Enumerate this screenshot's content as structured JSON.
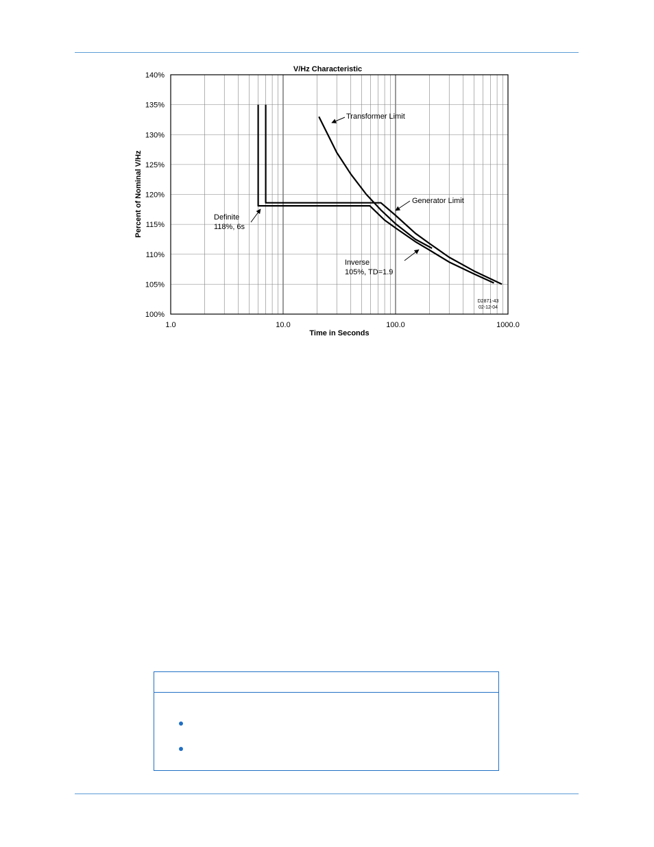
{
  "colors": {
    "rule": "#5b9bd5",
    "box_border": "#1f6fc4",
    "bullet": "#1f6fc4",
    "curve": "#000000",
    "grid": "#808080"
  },
  "chart_data": {
    "type": "line",
    "title": "V/Hz Characteristic",
    "xlabel": "Time in Seconds",
    "ylabel": "Percent of Nominal V/Hz",
    "x_scale": "log",
    "xlim": [
      1,
      1000
    ],
    "ylim": [
      100,
      140
    ],
    "x_ticks": [
      "1.0",
      "10.0",
      "100.0",
      "1000.0"
    ],
    "y_ticks": [
      "100%",
      "105%",
      "110%",
      "115%",
      "120%",
      "125%",
      "130%",
      "135%",
      "140%"
    ],
    "grid": true,
    "series": [
      {
        "curve": "transformer",
        "points": [
          [
            20.8,
            133
          ],
          [
            30,
            127
          ],
          [
            40,
            123.4
          ],
          [
            55,
            120
          ],
          [
            75,
            117.3
          ],
          [
            100,
            115.1
          ],
          [
            150,
            112.5
          ],
          [
            211,
            111
          ]
        ]
      },
      {
        "curve": "generator",
        "points": [
          [
            7.0,
            135
          ],
          [
            7.0,
            118.6
          ],
          [
            74,
            118.6
          ],
          [
            100,
            116.5
          ],
          [
            150,
            113.5
          ],
          [
            200,
            111.8
          ],
          [
            300,
            109.5
          ],
          [
            500,
            107.2
          ],
          [
            882,
            105
          ]
        ]
      },
      {
        "curve": "definite-inverse",
        "points": [
          [
            6.0,
            135
          ],
          [
            6.0,
            118.1
          ],
          [
            59,
            118.1
          ],
          [
            80,
            115.7
          ],
          [
            100,
            114.4
          ],
          [
            150,
            112.1
          ],
          [
            200,
            110.7
          ],
          [
            300,
            108.7
          ],
          [
            500,
            106.7
          ],
          [
            750,
            105.2
          ]
        ]
      }
    ],
    "annotations": [
      {
        "id": "transformer",
        "text": "Transformer Limit"
      },
      {
        "id": "generator",
        "text": "Generator Limit"
      },
      {
        "id": "definite1",
        "text": "Definite"
      },
      {
        "id": "definite2",
        "text": "118%, 6s"
      },
      {
        "id": "inverse1",
        "text": "Inverse"
      },
      {
        "id": "inverse2",
        "text": "105%, TD=1.9"
      },
      {
        "id": "code1",
        "text": "D2871-43"
      },
      {
        "id": "code2",
        "text": "02-12-04"
      }
    ]
  }
}
